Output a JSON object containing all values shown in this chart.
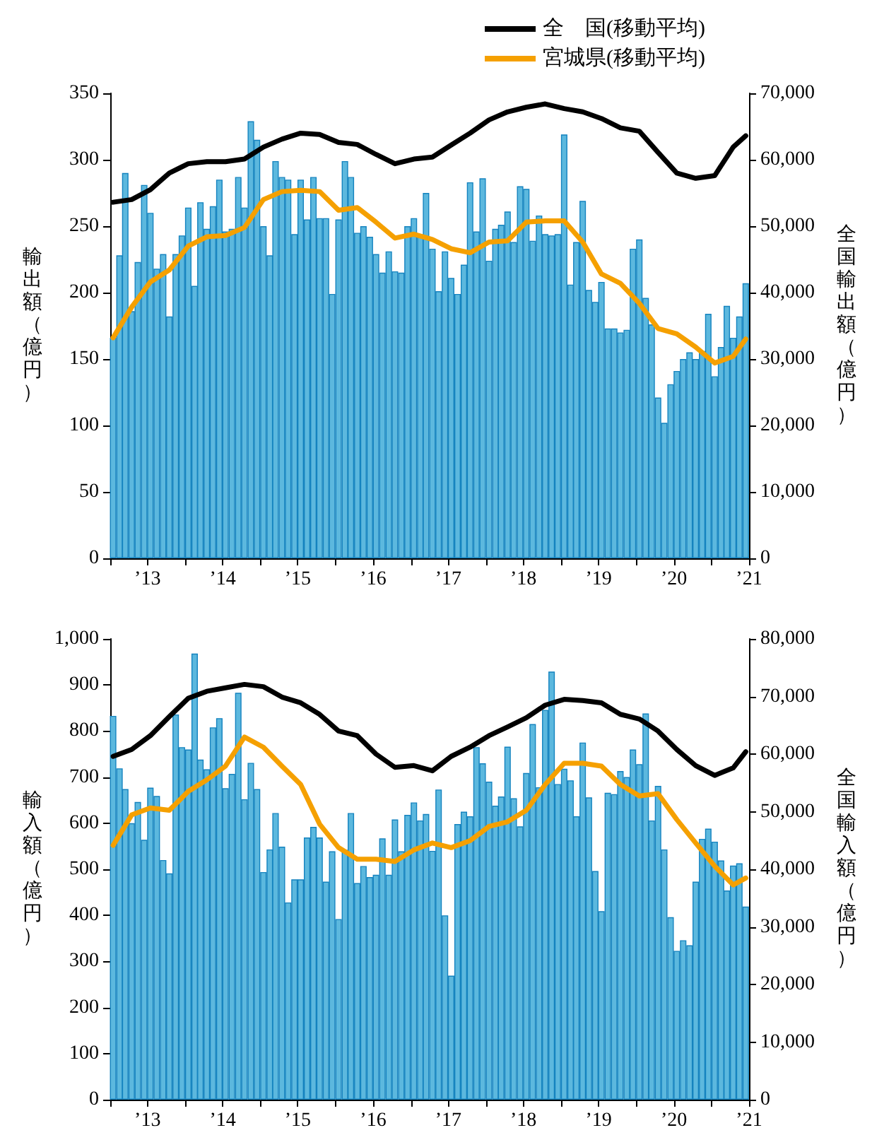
{
  "chart_data": [
    {
      "type": "bar",
      "ylabel": "輸出額（億円）",
      "y2label": "全国輸出額（億円）",
      "legend": "top right",
      "marker": "none",
      "grid": false,
      "xlim": [
        "2013-01-01",
        "2021-07-01"
      ],
      "xticks": [
        {
          "value": "2013-01-01",
          "label": null
        },
        {
          "value": "2013-07-01",
          "label": "’13"
        },
        {
          "value": "2014-01-01",
          "label": null
        },
        {
          "value": "2014-07-01",
          "label": "’14"
        },
        {
          "value": "2015-01-01",
          "label": null
        },
        {
          "value": "2015-07-01",
          "label": "’15"
        },
        {
          "value": "2016-01-01",
          "label": null
        },
        {
          "value": "2016-07-01",
          "label": "’16"
        },
        {
          "value": "2017-01-01",
          "label": null
        },
        {
          "value": "2017-07-01",
          "label": "’17"
        },
        {
          "value": "2018-01-01",
          "label": null
        },
        {
          "value": "2018-07-01",
          "label": "’18"
        },
        {
          "value": "2019-01-01",
          "label": null
        },
        {
          "value": "2019-07-01",
          "label": "’19"
        },
        {
          "value": "2020-01-01",
          "label": null
        },
        {
          "value": "2020-07-01",
          "label": "’20"
        },
        {
          "value": "2021-01-01",
          "label": null
        },
        {
          "value": "2021-07-01",
          "label": "’21"
        }
      ],
      "ylim": [
        0,
        350
      ],
      "yticks": [
        0,
        50,
        100,
        150,
        200,
        250,
        300,
        350
      ],
      "y2lim": [
        0,
        70000
      ],
      "y2ticks": [
        {
          "value": 0,
          "label": "0"
        },
        {
          "value": 10000,
          "label": "10,000"
        },
        {
          "value": 20000,
          "label": "20,000"
        },
        {
          "value": 30000,
          "label": "30,000"
        },
        {
          "value": 40000,
          "label": "40,000"
        },
        {
          "value": 50000,
          "label": "50,000"
        },
        {
          "value": 60000,
          "label": "60,000"
        },
        {
          "value": 70000,
          "label": "70,000"
        }
      ],
      "x": [
        "2013-01-15",
        "2013-02-15",
        "2013-03-15",
        "2013-04-15",
        "2013-05-15",
        "2013-06-15",
        "2013-07-15",
        "2013-08-15",
        "2013-09-15",
        "2013-10-15",
        "2013-11-15",
        "2013-12-15",
        "2014-01-15",
        "2014-02-15",
        "2014-03-15",
        "2014-04-15",
        "2014-05-15",
        "2014-06-15",
        "2014-07-15",
        "2014-08-15",
        "2014-09-15",
        "2014-10-15",
        "2014-11-15",
        "2014-12-15",
        "2015-01-15",
        "2015-02-15",
        "2015-03-15",
        "2015-04-15",
        "2015-05-15",
        "2015-06-15",
        "2015-07-15",
        "2015-08-15",
        "2015-09-15",
        "2015-10-15",
        "2015-11-15",
        "2015-12-15",
        "2016-01-15",
        "2016-02-15",
        "2016-03-15",
        "2016-04-15",
        "2016-05-15",
        "2016-06-15",
        "2016-07-15",
        "2016-08-15",
        "2016-09-15",
        "2016-10-15",
        "2016-11-15",
        "2016-12-15",
        "2017-01-15",
        "2017-02-15",
        "2017-03-15",
        "2017-04-15",
        "2017-05-15",
        "2017-06-15",
        "2017-07-15",
        "2017-08-15",
        "2017-09-15",
        "2017-10-15",
        "2017-11-15",
        "2017-12-15",
        "2018-01-15",
        "2018-02-15",
        "2018-03-15",
        "2018-04-15",
        "2018-05-15",
        "2018-06-15",
        "2018-07-15",
        "2018-08-15",
        "2018-09-15",
        "2018-10-15",
        "2018-11-15",
        "2018-12-15",
        "2019-01-15",
        "2019-02-15",
        "2019-03-15",
        "2019-04-15",
        "2019-05-15",
        "2019-06-15",
        "2019-07-15",
        "2019-08-15",
        "2019-09-15",
        "2019-10-15",
        "2019-11-15",
        "2019-12-15",
        "2020-01-15",
        "2020-02-15",
        "2020-03-15",
        "2020-04-15",
        "2020-05-15",
        "2020-06-15",
        "2020-07-15",
        "2020-08-15",
        "2020-09-15",
        "2020-10-15",
        "2020-11-15",
        "2020-12-15",
        "2021-01-15",
        "2021-02-15",
        "2021-03-15",
        "2021-04-15",
        "2021-05-15",
        "2021-06-15"
      ],
      "series": [
        {
          "color": "#5cb8de",
          "values": [
            166,
            228,
            290,
            186,
            223,
            281,
            260,
            218,
            229,
            182,
            229,
            243,
            264,
            205,
            268,
            248,
            265,
            285,
            246,
            248,
            287,
            264,
            329,
            315,
            250,
            228,
            299,
            287,
            285,
            244,
            285,
            255,
            287,
            256,
            256,
            199,
            255,
            299,
            287,
            245,
            250,
            242,
            229,
            215,
            231,
            216,
            215,
            250,
            256,
            242,
            275,
            233,
            201,
            231,
            211,
            199,
            221,
            283,
            246,
            286,
            224,
            248,
            251,
            261,
            238,
            280,
            278,
            239,
            258,
            244,
            243,
            244,
            319,
            206,
            238,
            269,
            202,
            193,
            208,
            173,
            173,
            170,
            172,
            233,
            240,
            196,
            176,
            121,
            102,
            131,
            141,
            150,
            155,
            150,
            156,
            184,
            137,
            159,
            190,
            166,
            182,
            207
          ]
        },
        {
          "type": "line",
          "name": "全　国(移動平均)",
          "color": "#000000",
          "axis": "y2",
          "x": [
            "2013-01-15",
            "2013-04-15",
            "2013-07-15",
            "2013-10-15",
            "2014-01-15",
            "2014-04-15",
            "2014-07-15",
            "2014-10-15",
            "2015-01-15",
            "2015-04-15",
            "2015-07-15",
            "2015-10-15",
            "2016-01-15",
            "2016-04-15",
            "2016-07-15",
            "2016-10-15",
            "2017-01-15",
            "2017-04-15",
            "2017-07-15",
            "2017-10-15",
            "2018-01-15",
            "2018-04-15",
            "2018-07-15",
            "2018-10-15",
            "2019-01-15",
            "2019-04-15",
            "2019-07-15",
            "2019-10-15",
            "2020-01-15",
            "2020-04-15",
            "2020-07-15",
            "2020-10-15",
            "2021-01-15",
            "2021-04-15",
            "2021-06-15"
          ],
          "values": [
            53600,
            54000,
            55500,
            58000,
            59400,
            59700,
            59700,
            60100,
            61900,
            63100,
            64000,
            63800,
            62600,
            62300,
            60800,
            59400,
            60100,
            60400,
            62200,
            64000,
            66000,
            67200,
            67900,
            68400,
            67700,
            67200,
            66200,
            64800,
            64300,
            61100,
            58000,
            57200,
            57600,
            61900,
            63600
          ]
        },
        {
          "type": "line",
          "name": "宮城県(移動平均)",
          "color": "#f5a000",
          "x": [
            "2013-01-15",
            "2013-04-15",
            "2013-07-15",
            "2013-10-15",
            "2014-01-15",
            "2014-04-15",
            "2014-07-15",
            "2014-10-15",
            "2015-01-15",
            "2015-04-15",
            "2015-07-15",
            "2015-10-15",
            "2016-01-15",
            "2016-04-15",
            "2016-07-15",
            "2016-10-15",
            "2017-01-15",
            "2017-04-15",
            "2017-07-15",
            "2017-10-15",
            "2018-01-15",
            "2018-04-15",
            "2018-07-15",
            "2018-10-15",
            "2019-01-15",
            "2019-04-15",
            "2019-07-15",
            "2019-10-15",
            "2020-01-15",
            "2020-04-15",
            "2020-07-15",
            "2020-10-15",
            "2021-01-15",
            "2021-04-15",
            "2021-06-15"
          ],
          "values": [
            166,
            189,
            208,
            217,
            235,
            242,
            243,
            249,
            270,
            276,
            277,
            276,
            262,
            264,
            253,
            241,
            244,
            240,
            233,
            230,
            238,
            239,
            253,
            254,
            254,
            238,
            214,
            207,
            192,
            173,
            169,
            159,
            147,
            152,
            165
          ]
        }
      ]
    },
    {
      "type": "bar",
      "ylabel": "輸入額（億円）",
      "y2label": "全国輸入額（億円）",
      "marker": "none",
      "grid": false,
      "xlim": [
        "2013-01-01",
        "2021-07-01"
      ],
      "xticks": [
        {
          "value": "2013-01-01",
          "label": null
        },
        {
          "value": "2013-07-01",
          "label": "’13"
        },
        {
          "value": "2014-01-01",
          "label": null
        },
        {
          "value": "2014-07-01",
          "label": "’14"
        },
        {
          "value": "2015-01-01",
          "label": null
        },
        {
          "value": "2015-07-01",
          "label": "’15"
        },
        {
          "value": "2016-01-01",
          "label": null
        },
        {
          "value": "2016-07-01",
          "label": "’16"
        },
        {
          "value": "2017-01-01",
          "label": null
        },
        {
          "value": "2017-07-01",
          "label": "’17"
        },
        {
          "value": "2018-01-01",
          "label": null
        },
        {
          "value": "2018-07-01",
          "label": "’18"
        },
        {
          "value": "2019-01-01",
          "label": null
        },
        {
          "value": "2019-07-01",
          "label": "’19"
        },
        {
          "value": "2020-01-01",
          "label": null
        },
        {
          "value": "2020-07-01",
          "label": "’20"
        },
        {
          "value": "2021-01-01",
          "label": null
        },
        {
          "value": "2021-07-01",
          "label": "’21"
        }
      ],
      "ylim": [
        0,
        1000
      ],
      "yticks": [
        0,
        100,
        200,
        300,
        400,
        500,
        600,
        700,
        800,
        900,
        {
          "value": 1000,
          "label": "1,000"
        }
      ],
      "y2lim": [
        0,
        80000
      ],
      "y2ticks": [
        {
          "value": 0,
          "label": "0"
        },
        {
          "value": 10000,
          "label": "10,000"
        },
        {
          "value": 20000,
          "label": "20,000"
        },
        {
          "value": 30000,
          "label": "30,000"
        },
        {
          "value": 40000,
          "label": "40,000"
        },
        {
          "value": 50000,
          "label": "50,000"
        },
        {
          "value": 60000,
          "label": "60,000"
        },
        {
          "value": 70000,
          "label": "70,000"
        },
        {
          "value": 80000,
          "label": "80,000"
        }
      ],
      "x": [
        "2013-01-15",
        "2013-02-15",
        "2013-03-15",
        "2013-04-15",
        "2013-05-15",
        "2013-06-15",
        "2013-07-15",
        "2013-08-15",
        "2013-09-15",
        "2013-10-15",
        "2013-11-15",
        "2013-12-15",
        "2014-01-15",
        "2014-02-15",
        "2014-03-15",
        "2014-04-15",
        "2014-05-15",
        "2014-06-15",
        "2014-07-15",
        "2014-08-15",
        "2014-09-15",
        "2014-10-15",
        "2014-11-15",
        "2014-12-15",
        "2015-01-15",
        "2015-02-15",
        "2015-03-15",
        "2015-04-15",
        "2015-05-15",
        "2015-06-15",
        "2015-07-15",
        "2015-08-15",
        "2015-09-15",
        "2015-10-15",
        "2015-11-15",
        "2015-12-15",
        "2016-01-15",
        "2016-02-15",
        "2016-03-15",
        "2016-04-15",
        "2016-05-15",
        "2016-06-15",
        "2016-07-15",
        "2016-08-15",
        "2016-09-15",
        "2016-10-15",
        "2016-11-15",
        "2016-12-15",
        "2017-01-15",
        "2017-02-15",
        "2017-03-15",
        "2017-04-15",
        "2017-05-15",
        "2017-06-15",
        "2017-07-15",
        "2017-08-15",
        "2017-09-15",
        "2017-10-15",
        "2017-11-15",
        "2017-12-15",
        "2018-01-15",
        "2018-02-15",
        "2018-03-15",
        "2018-04-15",
        "2018-05-15",
        "2018-06-15",
        "2018-07-15",
        "2018-08-15",
        "2018-09-15",
        "2018-10-15",
        "2018-11-15",
        "2018-12-15",
        "2019-01-15",
        "2019-02-15",
        "2019-03-15",
        "2019-04-15",
        "2019-05-15",
        "2019-06-15",
        "2019-07-15",
        "2019-08-15",
        "2019-09-15",
        "2019-10-15",
        "2019-11-15",
        "2019-12-15",
        "2020-01-15",
        "2020-02-15",
        "2020-03-15",
        "2020-04-15",
        "2020-05-15",
        "2020-06-15",
        "2020-07-15",
        "2020-08-15",
        "2020-09-15",
        "2020-10-15",
        "2020-11-15",
        "2020-12-15",
        "2021-01-15",
        "2021-02-15",
        "2021-03-15",
        "2021-04-15",
        "2021-05-15",
        "2021-06-15"
      ],
      "series": [
        {
          "color": "#5cb8de",
          "values": [
            833,
            719,
            674,
            600,
            646,
            564,
            677,
            659,
            520,
            491,
            836,
            765,
            760,
            968,
            738,
            717,
            808,
            828,
            676,
            707,
            883,
            652,
            731,
            674,
            494,
            543,
            622,
            549,
            428,
            478,
            478,
            569,
            592,
            569,
            473,
            539,
            392,
            542,
            622,
            470,
            507,
            483,
            488,
            567,
            488,
            608,
            539,
            618,
            645,
            606,
            620,
            540,
            673,
            400,
            269,
            598,
            625,
            615,
            765,
            730,
            690,
            638,
            658,
            766,
            654,
            593,
            709,
            815,
            678,
            846,
            929,
            685,
            718,
            693,
            615,
            775,
            656,
            496,
            409,
            666,
            663,
            713,
            700,
            760,
            728,
            838,
            606,
            681,
            543,
            396,
            323,
            346,
            335,
            473,
            566,
            588,
            560,
            519,
            454,
            508,
            513,
            419
          ]
        },
        {
          "type": "line",
          "color": "#000000",
          "axis": "y2",
          "x": [
            "2013-01-15",
            "2013-04-15",
            "2013-07-15",
            "2013-10-15",
            "2014-01-15",
            "2014-04-15",
            "2014-07-15",
            "2014-10-15",
            "2015-01-15",
            "2015-04-15",
            "2015-07-15",
            "2015-10-15",
            "2016-01-15",
            "2016-04-15",
            "2016-07-15",
            "2016-10-15",
            "2017-01-15",
            "2017-04-15",
            "2017-07-15",
            "2017-10-15",
            "2018-01-15",
            "2018-04-15",
            "2018-07-15",
            "2018-10-15",
            "2019-01-15",
            "2019-04-15",
            "2019-07-15",
            "2019-10-15",
            "2020-01-15",
            "2020-04-15",
            "2020-07-15",
            "2020-10-15",
            "2021-01-15",
            "2021-04-15",
            "2021-06-15"
          ],
          "values": [
            59600,
            60800,
            63200,
            66500,
            69700,
            70900,
            71500,
            72100,
            71700,
            69900,
            68900,
            66900,
            64000,
            63200,
            60000,
            57700,
            58000,
            57100,
            59600,
            61200,
            63200,
            64700,
            66300,
            68500,
            69500,
            69300,
            68900,
            66900,
            66100,
            64000,
            60800,
            58000,
            56300,
            57600,
            60400
          ]
        },
        {
          "type": "line",
          "color": "#f5a000",
          "x": [
            "2013-01-15",
            "2013-04-15",
            "2013-07-15",
            "2013-10-15",
            "2014-01-15",
            "2014-04-15",
            "2014-07-15",
            "2014-10-15",
            "2015-01-15",
            "2015-04-15",
            "2015-07-15",
            "2015-10-15",
            "2016-01-15",
            "2016-04-15",
            "2016-07-15",
            "2016-10-15",
            "2017-01-15",
            "2017-04-15",
            "2017-07-15",
            "2017-10-15",
            "2018-01-15",
            "2018-04-15",
            "2018-07-15",
            "2018-10-15",
            "2019-01-15",
            "2019-04-15",
            "2019-07-15",
            "2019-10-15",
            "2020-01-15",
            "2020-04-15",
            "2020-07-15",
            "2020-10-15",
            "2021-01-15",
            "2021-04-15",
            "2021-06-15"
          ],
          "values": [
            552,
            618,
            633,
            628,
            669,
            694,
            724,
            787,
            765,
            724,
            684,
            598,
            547,
            522,
            522,
            517,
            542,
            557,
            547,
            562,
            593,
            603,
            628,
            684,
            730,
            730,
            724,
            684,
            659,
            664,
            608,
            557,
            507,
            466,
            481
          ]
        }
      ]
    }
  ]
}
